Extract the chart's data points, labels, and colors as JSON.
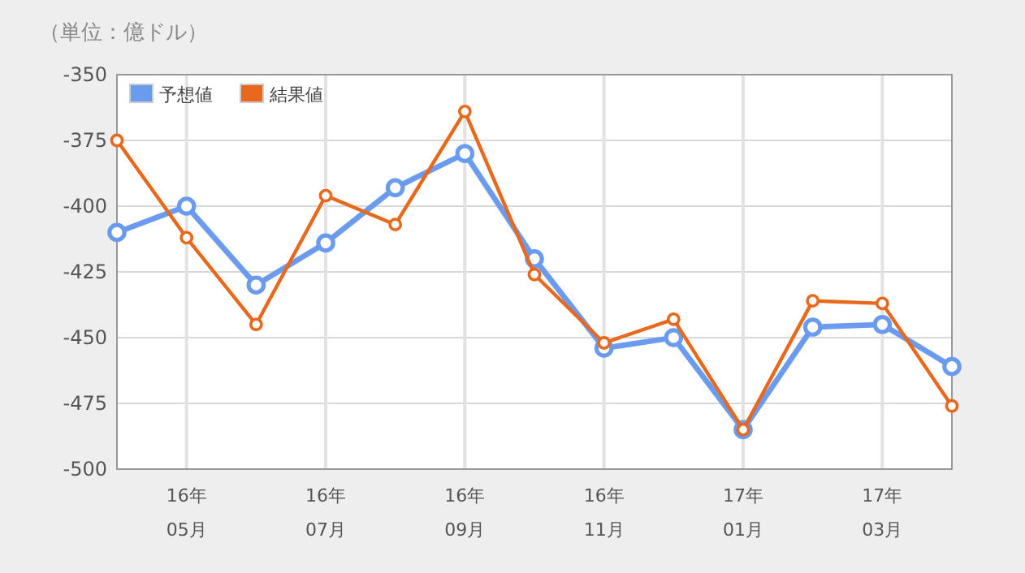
{
  "chart_data": {
    "type": "line",
    "title": "（単位：億ドル）",
    "categories": [
      null,
      "16年\n05月",
      null,
      "16年\n07月",
      null,
      "16年\n09月",
      null,
      "16年\n11月",
      null,
      "17年\n01月",
      null,
      "17年\n03月",
      null
    ],
    "series": [
      {
        "name": "予想値",
        "color": "#6a9bef",
        "values": [
          -410,
          -400,
          -430,
          -414,
          -393,
          -380,
          -420,
          -454,
          -450,
          -485,
          -446,
          -445,
          -461
        ]
      },
      {
        "name": "結果値",
        "color": "#e8681c",
        "values": [
          -375,
          -412,
          -445,
          -396,
          -407,
          -364,
          -426,
          -452,
          -443,
          -485,
          -436,
          -437,
          -476
        ]
      }
    ],
    "ylim": [
      -500,
      -350
    ],
    "yticks": [
      -500,
      -475,
      -450,
      -425,
      -400,
      -375,
      -350
    ],
    "grid": true,
    "legend": "top left",
    "marker": "circle",
    "line_style": "solid"
  }
}
